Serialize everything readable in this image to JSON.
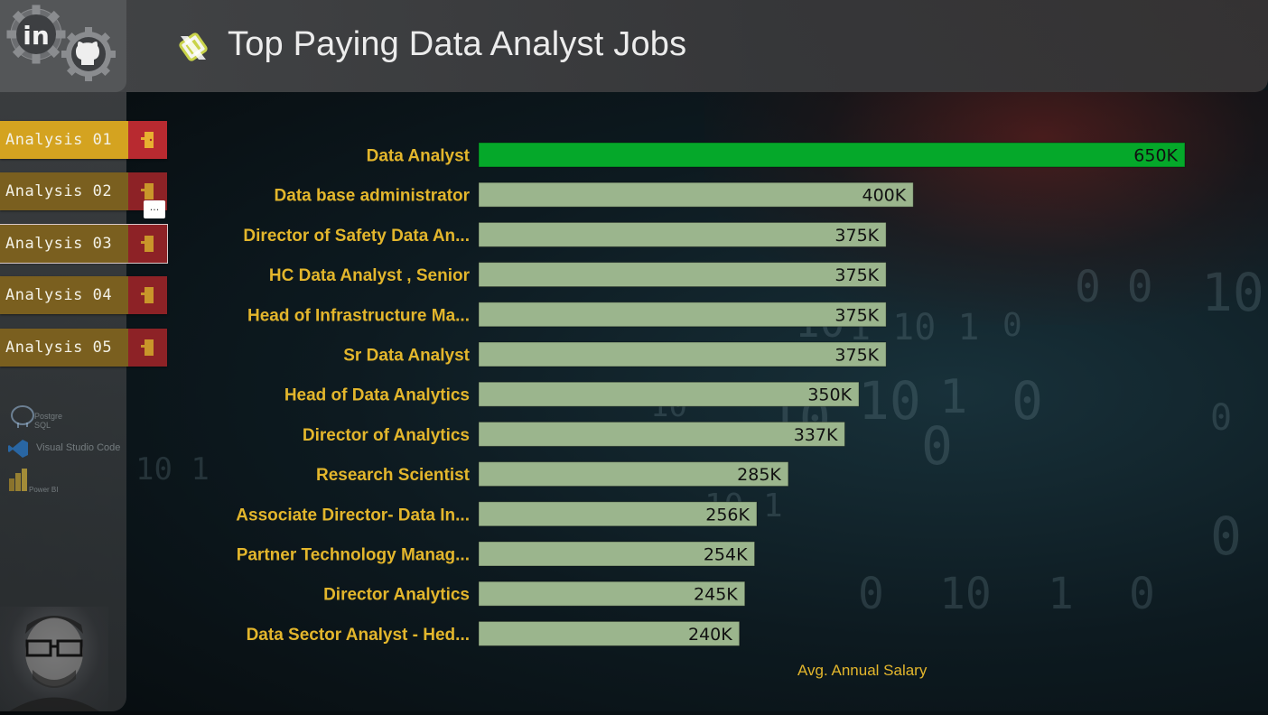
{
  "header": {
    "title": "Top Paying Data Analyst Jobs"
  },
  "sidebar": {
    "buttons": [
      {
        "label": "Analysis 01"
      },
      {
        "label": "Analysis 02"
      },
      {
        "label": "Analysis 03"
      },
      {
        "label": "Analysis 04"
      },
      {
        "label": "Analysis 05"
      }
    ],
    "more_label": "...",
    "tools": [
      {
        "label": "Postgre SQL",
        "icon": "postgresql-icon"
      },
      {
        "label": "Visual Studio Code",
        "icon": "vscode-icon"
      },
      {
        "label": "Power BI",
        "icon": "powerbi-icon"
      }
    ]
  },
  "colors": {
    "accent_bar": "#05a82a",
    "bar": "#9bb58d",
    "label": "#e3b62c",
    "nav_active": "#d4a320",
    "nav_icon": "#a8262c"
  },
  "chart_data": {
    "type": "bar",
    "orientation": "horizontal",
    "categories": [
      "Data Analyst",
      "Data base administrator",
      "Director of Safety Data An...",
      "HC Data Analyst , Senior",
      "Head of Infrastructure Ma...",
      "Sr Data Analyst",
      "Head of Data Analytics",
      "Director of Analytics",
      "Research Scientist",
      "Associate Director- Data In...",
      "Partner Technology Manag...",
      "Director Analytics",
      "Data Sector Analyst - Hed..."
    ],
    "values": [
      650000,
      400000,
      375000,
      375000,
      375000,
      375000,
      350000,
      337000,
      285000,
      256000,
      254000,
      245000,
      240000
    ],
    "data_labels": [
      "650K",
      "400K",
      "375K",
      "375K",
      "375K",
      "375K",
      "350K",
      "337K",
      "285K",
      "256K",
      "254K",
      "245K",
      "240K"
    ],
    "xlabel": "Avg. Annual Salary",
    "ylabel": "",
    "xlim": [
      0,
      650000
    ],
    "highlight_index": 0,
    "grid": false,
    "legend": "none"
  }
}
